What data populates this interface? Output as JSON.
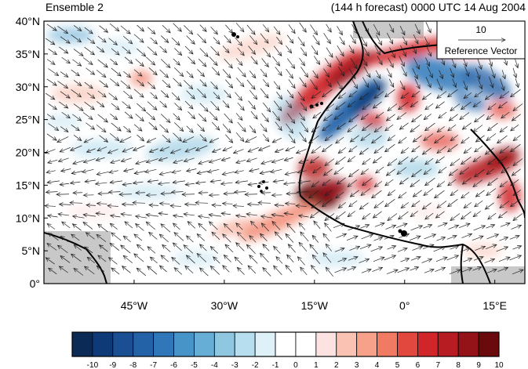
{
  "header": {
    "left": "Ensemble 2",
    "right": "(144 h forecast) 0000 UTC 14 Aug 2004"
  },
  "map": {
    "lat_labels": [
      "40°N",
      "35°N",
      "30°N",
      "25°N",
      "20°N",
      "15°N",
      "10°N",
      "5°N",
      "0°"
    ],
    "lon_labels": [
      "45°W",
      "30°W",
      "15°W",
      "0°",
      "15°E"
    ],
    "extent": {
      "lon": [
        -60,
        20
      ],
      "lat": [
        0,
        40
      ]
    },
    "land_color": "#c8c8c8",
    "coast_color": "#000000"
  },
  "reference_vector": {
    "magnitude_label": "10",
    "title": "Reference Vector"
  },
  "colorbar": {
    "labels": [
      "-10",
      "-9",
      "-8",
      "-7",
      "-6",
      "-5",
      "-4",
      "-3",
      "-2",
      "-1",
      "0",
      "1",
      "2",
      "3",
      "4",
      "5",
      "6",
      "7",
      "8",
      "9",
      "10"
    ],
    "colors": [
      "#0b2a56",
      "#0e3a78",
      "#1a4f93",
      "#2462a8",
      "#2f77b8",
      "#4794c9",
      "#67aed6",
      "#8fc7e0",
      "#b6deee",
      "#dff1f8",
      "#ffffff",
      "#ffffff",
      "#fde2e2",
      "#f9c2b2",
      "#f7a08a",
      "#f07b62",
      "#e2483e",
      "#d0262a",
      "#b71c22",
      "#931319",
      "#6b0a0c"
    ]
  }
}
